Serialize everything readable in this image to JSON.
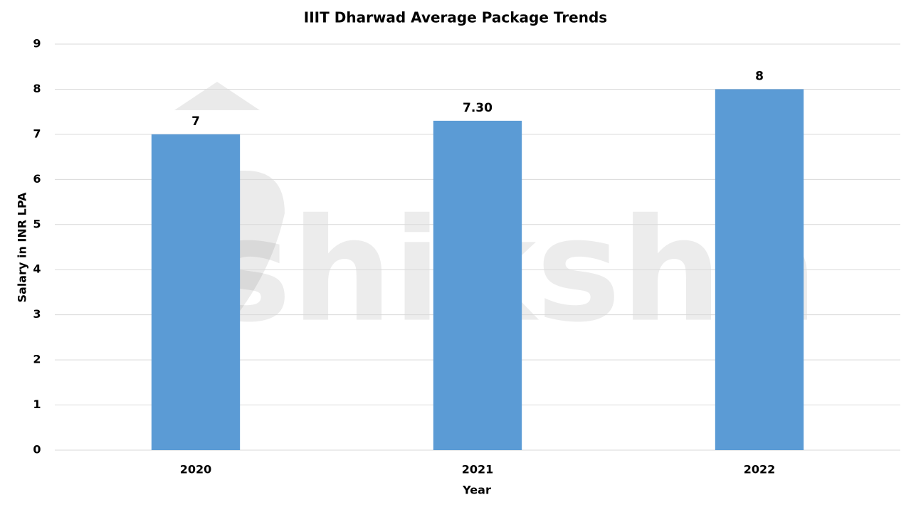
{
  "chart_data": {
    "type": "bar",
    "title": "IIIT Dharwad Average Package Trends",
    "x_label": "Year",
    "y_label": "Salary in INR LPA",
    "categories": [
      "2020",
      "2021",
      "2022"
    ],
    "values": [
      7,
      7.3,
      8
    ],
    "value_labels": [
      "7",
      "7.30",
      "8"
    ],
    "color": "#5b9bd5",
    "ylim": [
      0,
      9
    ],
    "yticks": [
      0,
      1,
      2,
      3,
      4,
      5,
      6,
      7,
      8,
      9
    ],
    "grid": true,
    "watermark": "shiksha"
  }
}
